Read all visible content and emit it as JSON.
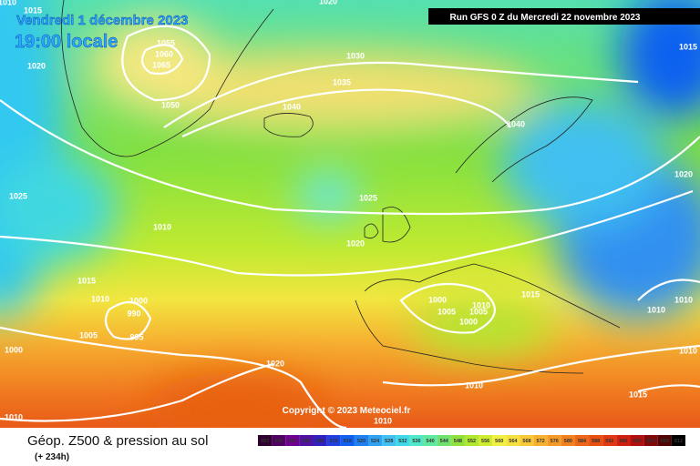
{
  "header": {
    "date": "Vendredi 1 décembre 2023",
    "time": "19:00 locale",
    "run": "Run GFS 0 Z du Mercredi 22 novembre 2023"
  },
  "copyright": "Copyright © 2023 Meteociel.fr",
  "footer": {
    "title": "Géop. Z500 & pression au sol",
    "lead": "(+ 234h)"
  },
  "legend": {
    "values": [
      "492",
      "496",
      "500",
      "504",
      "508",
      "512",
      "516",
      "520",
      "524",
      "528",
      "532",
      "536",
      "540",
      "544",
      "548",
      "552",
      "556",
      "560",
      "564",
      "568",
      "572",
      "576",
      "580",
      "584",
      "588",
      "592",
      "596",
      "600",
      "604",
      "608",
      "612"
    ]
  },
  "pressure_labels": [
    "1010",
    "1015",
    "1020",
    "1055",
    "1060",
    "1065",
    "1020",
    "1050",
    "1030",
    "1035",
    "1040",
    "1040",
    "1015",
    "1020",
    "1025",
    "1010",
    "1025",
    "1020",
    "1015",
    "1010",
    "1000",
    "990",
    "995",
    "1005",
    "1000",
    "1020",
    "1000",
    "1005",
    "1010",
    "1005",
    "1000",
    "1015",
    "1010",
    "1010",
    "1010",
    "1010",
    "1015",
    "1010",
    "1010"
  ]
}
